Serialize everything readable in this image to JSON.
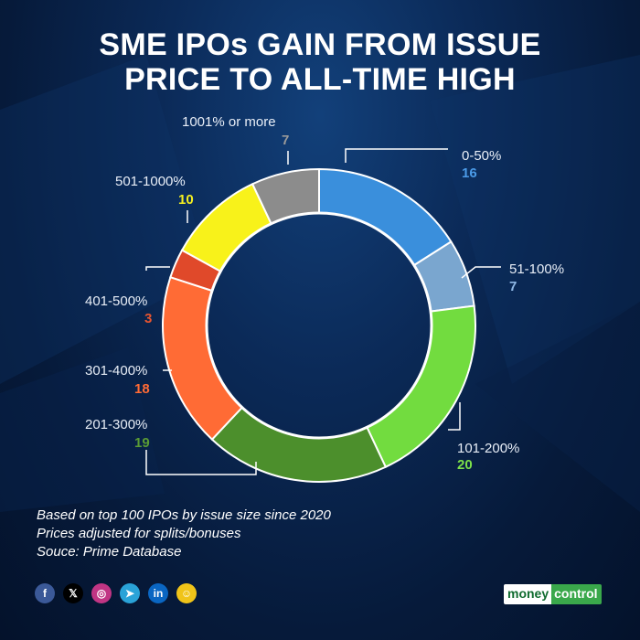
{
  "title": {
    "line1": "SME IPOs GAIN FROM ISSUE",
    "line2": "PRICE TO ALL-TIME HIGH"
  },
  "chart_data": {
    "type": "donut",
    "title": "SME IPOs GAIN FROM ISSUE PRICE TO ALL-TIME HIGH",
    "categories": [
      "0-50%",
      "51-100%",
      "101-200%",
      "201-300%",
      "301-400%",
      "401-500%",
      "501-1000%",
      "1001% or more"
    ],
    "values": [
      16,
      7,
      20,
      19,
      18,
      3,
      10,
      7
    ],
    "colors": [
      "#3a8fdc",
      "#7aa6cf",
      "#72dc3f",
      "#4c8f2c",
      "#ff6b35",
      "#e0492a",
      "#f8f21a",
      "#8c8c8c"
    ],
    "value_colors": [
      "#4b9be8",
      "#8fb8e6",
      "#7de04a",
      "#5a9b34",
      "#ff6b35",
      "#e85530",
      "#f5ef20",
      "#9a9a9a"
    ]
  },
  "notes": [
    "Based on top 100 IPOs by issue size since 2020",
    "Prices adjusted for splits/bonuses",
    "Souce: Prime Database"
  ],
  "social": [
    {
      "icon": "facebook-icon",
      "glyph": "f",
      "color": "#3b5998"
    },
    {
      "icon": "x-icon",
      "glyph": "𝕏",
      "color": "#000000"
    },
    {
      "icon": "instagram-icon",
      "glyph": "◎",
      "color": "#c13584"
    },
    {
      "icon": "telegram-icon",
      "glyph": "➤",
      "color": "#2aa3d8"
    },
    {
      "icon": "linkedin-icon",
      "glyph": "in",
      "color": "#0a66c2"
    },
    {
      "icon": "snapchat-icon",
      "glyph": "☺",
      "color": "#f0c419"
    }
  ],
  "brand": {
    "part1": "money",
    "part2": "control"
  }
}
